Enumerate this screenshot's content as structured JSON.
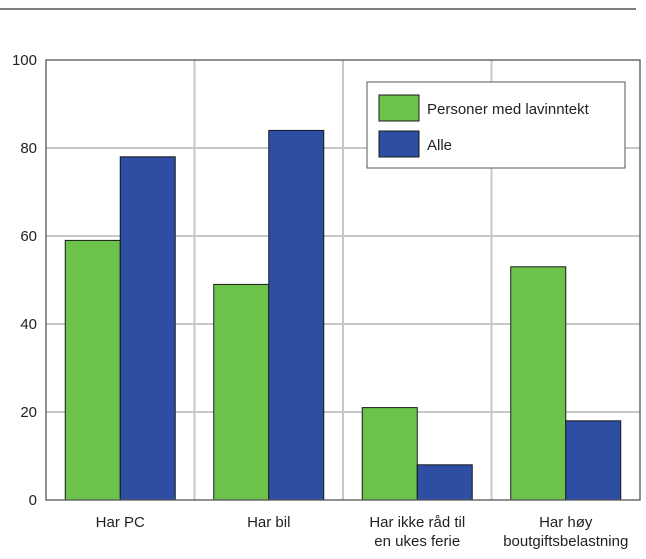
{
  "colors": {
    "series_low_income": "#6cc24a",
    "series_all": "#2e4ea3",
    "grid": "#c8c8c8",
    "frame": "#555555",
    "top_rule": "#333333",
    "bar_outline": "#1a1a1a"
  },
  "chart_data": {
    "type": "bar",
    "categories": [
      [
        "Har PC"
      ],
      [
        "Har bil"
      ],
      [
        "Har ikke råd til",
        "en ukes ferie"
      ],
      [
        "Har høy",
        "boutgiftsbelastning"
      ]
    ],
    "series": [
      {
        "name": "Personer med lavinntekt",
        "values": [
          59,
          49,
          21,
          53
        ]
      },
      {
        "name": "Alle",
        "values": [
          78,
          84,
          8,
          18
        ]
      }
    ],
    "ylim": [
      0,
      100
    ],
    "yticks": [
      0,
      20,
      40,
      60,
      80,
      100
    ],
    "grid": true,
    "legend_position": "top-right",
    "xlabel": "",
    "ylabel": ""
  }
}
